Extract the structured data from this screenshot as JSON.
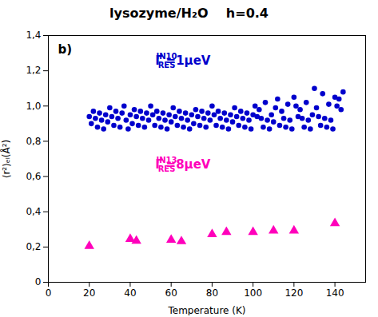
{
  "chart_data": {
    "type": "scatter",
    "title": "lysozyme/H₂O    h=0.4",
    "xlabel": "Temperature (K)",
    "ylabel": "⟨r²⟩ₑₗ(Å²)",
    "panel_label": "b)",
    "annotations": [
      {
        "text": "Γ",
        "subscript": "RES",
        "superscript": "IN10",
        "suffix": "=1μeV",
        "color": "#0000CC"
      },
      {
        "text": "Γ",
        "subscript": "RES",
        "superscript": "IN13",
        "suffix": "=8μeV",
        "color": "#FF00BB"
      }
    ],
    "xlim": [
      0,
      155
    ],
    "ylim": [
      0,
      1.4
    ],
    "xticks": [
      0,
      20,
      40,
      60,
      80,
      100,
      120,
      140
    ],
    "yticks": [
      0,
      {
        "value": 0.2,
        "label": "0,2"
      },
      {
        "value": 0.4,
        "label": "0,4"
      },
      {
        "value": 0.6,
        "label": "0,6"
      },
      {
        "value": 0.8,
        "label": "0,8"
      },
      {
        "value": 1.0,
        "label": "1,0"
      },
      {
        "value": 1.2,
        "label": "1,2"
      },
      {
        "value": 1.4,
        "label": "1,4"
      }
    ],
    "grid": false,
    "series": [
      {
        "color": "#0000CC",
        "marker": "circle",
        "x": [
          20,
          21,
          22,
          23,
          24,
          25,
          26,
          27,
          28,
          29,
          30,
          31,
          32,
          33,
          34,
          35,
          36,
          37,
          38,
          39,
          40,
          41,
          42,
          43,
          44,
          45,
          46,
          47,
          48,
          49,
          50,
          51,
          52,
          53,
          54,
          55,
          56,
          57,
          58,
          59,
          60,
          61,
          62,
          63,
          64,
          65,
          66,
          67,
          68,
          69,
          70,
          71,
          72,
          73,
          74,
          75,
          76,
          77,
          78,
          79,
          80,
          81,
          82,
          83,
          84,
          85,
          86,
          87,
          88,
          89,
          90,
          91,
          92,
          93,
          94,
          95,
          96,
          97,
          98,
          99,
          100,
          101,
          102,
          103,
          104,
          105,
          106,
          107,
          108,
          109,
          110,
          111,
          112,
          113,
          114,
          115,
          116,
          117,
          118,
          119,
          120,
          121,
          122,
          123,
          124,
          125,
          126,
          127,
          128,
          129,
          130,
          131,
          132,
          133,
          134,
          135,
          136,
          137,
          138,
          139,
          140,
          141,
          142,
          143,
          144
        ],
        "values": [
          0.94,
          0.9,
          0.97,
          0.93,
          0.88,
          0.96,
          0.92,
          0.87,
          0.95,
          0.91,
          0.99,
          0.94,
          0.89,
          0.97,
          0.93,
          0.88,
          0.96,
          1.0,
          0.92,
          0.87,
          0.95,
          0.9,
          0.98,
          0.94,
          0.89,
          0.97,
          0.93,
          0.88,
          0.96,
          0.92,
          1.0,
          0.95,
          0.89,
          0.97,
          0.93,
          0.88,
          0.96,
          0.92,
          0.87,
          0.95,
          0.91,
          0.99,
          0.94,
          0.89,
          0.97,
          0.93,
          0.88,
          0.96,
          0.92,
          0.87,
          0.95,
          0.9,
          0.98,
          0.94,
          0.89,
          0.97,
          0.93,
          0.88,
          0.96,
          0.92,
          1.0,
          0.95,
          0.89,
          0.97,
          0.93,
          0.88,
          0.96,
          0.92,
          0.87,
          0.95,
          0.91,
          0.99,
          0.94,
          0.89,
          0.97,
          0.93,
          0.88,
          0.96,
          0.92,
          0.87,
          0.95,
          1.0,
          0.94,
          0.98,
          0.93,
          0.88,
          1.02,
          0.92,
          0.87,
          0.95,
          0.91,
          0.99,
          1.04,
          0.89,
          0.97,
          0.93,
          0.88,
          1.01,
          0.92,
          0.87,
          1.05,
          1.0,
          0.94,
          0.98,
          0.93,
          0.88,
          1.02,
          0.92,
          0.87,
          0.95,
          1.1,
          0.99,
          0.94,
          0.89,
          1.07,
          0.93,
          0.88,
          1.01,
          0.92,
          0.87,
          1.05,
          1.0,
          1.04,
          0.98,
          1.08
        ]
      },
      {
        "color": "#FF00BB",
        "marker": "triangle",
        "x": [
          20,
          40,
          43,
          60,
          65,
          80,
          87,
          100,
          110,
          120,
          140
        ],
        "values": [
          0.205,
          0.245,
          0.235,
          0.24,
          0.232,
          0.272,
          0.285,
          0.285,
          0.293,
          0.293,
          0.335
        ]
      }
    ]
  }
}
